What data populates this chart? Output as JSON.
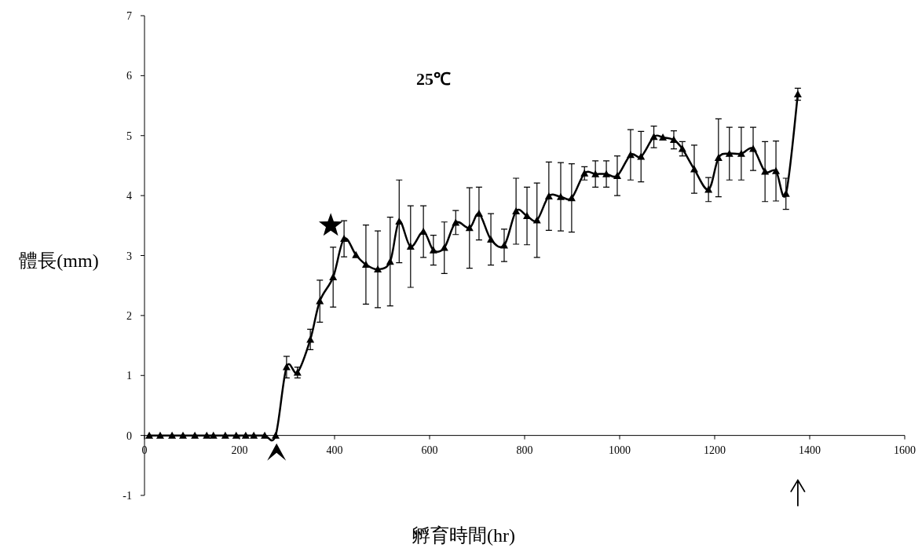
{
  "chart_data": {
    "type": "line",
    "title": "25℃",
    "xlabel": "孵育時間(hr)",
    "ylabel": "體長(mm)",
    "xlim": [
      0,
      1600
    ],
    "ylim": [
      -1,
      7
    ],
    "xticks": [
      0,
      200,
      400,
      600,
      800,
      1000,
      1200,
      1400,
      1600
    ],
    "yticks": [
      -1,
      0,
      1,
      2,
      3,
      4,
      5,
      6,
      7
    ],
    "marker": "triangle",
    "line_style": "solid",
    "x": [
      10,
      33,
      58,
      81,
      106,
      131,
      145,
      170,
      193,
      213,
      230,
      253,
      276,
      299,
      322,
      349,
      369,
      397,
      420,
      445,
      466,
      491,
      517,
      536,
      560,
      587,
      608,
      631,
      655,
      684,
      704,
      729,
      757,
      782,
      805,
      826,
      851,
      876,
      899,
      926,
      949,
      972,
      995,
      1023,
      1045,
      1072,
      1091,
      1114,
      1132,
      1157,
      1187,
      1208,
      1231,
      1256,
      1281,
      1306,
      1329,
      1350,
      1375
    ],
    "series": [
      {
        "color": "#000000",
        "values": [
          0,
          0,
          0,
          0,
          0,
          0,
          0,
          0,
          0,
          0,
          0,
          0,
          0,
          1.14,
          1.05,
          1.6,
          2.24,
          2.64,
          3.28,
          3.01,
          2.85,
          2.77,
          2.9,
          3.57,
          3.15,
          3.4,
          3.09,
          3.13,
          3.55,
          3.46,
          3.7,
          3.27,
          3.17,
          3.74,
          3.66,
          3.59,
          3.99,
          3.98,
          3.96,
          4.37,
          4.36,
          4.36,
          4.33,
          4.68,
          4.65,
          4.98,
          4.97,
          4.93,
          4.78,
          4.44,
          4.1,
          4.63,
          4.7,
          4.7,
          4.78,
          4.4,
          4.41,
          4.03,
          5.69
        ],
        "errors": [
          null,
          null,
          null,
          null,
          null,
          null,
          null,
          null,
          null,
          null,
          null,
          null,
          null,
          0.18,
          0.09,
          0.17,
          0.35,
          0.5,
          0.3,
          null,
          0.66,
          0.64,
          0.74,
          0.69,
          0.68,
          0.43,
          0.25,
          0.43,
          0.2,
          0.67,
          0.44,
          0.43,
          0.27,
          0.55,
          0.48,
          0.62,
          0.57,
          0.57,
          0.57,
          0.11,
          0.22,
          0.22,
          0.33,
          0.42,
          0.42,
          0.18,
          null,
          0.15,
          0.12,
          0.4,
          0.2,
          0.65,
          0.44,
          0.44,
          0.36,
          0.5,
          0.5,
          0.26,
          0.1
        ]
      }
    ]
  }
}
